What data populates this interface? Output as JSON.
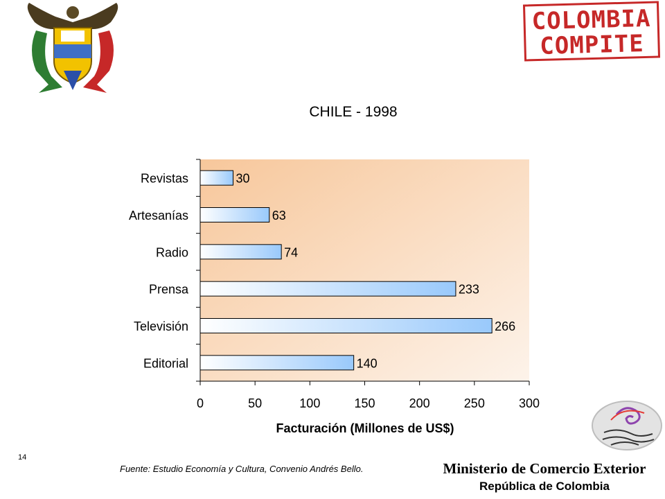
{
  "header": {
    "left_logo_icon": "colombia-coat-of-arms-icon",
    "right_logo_lines": [
      "COLOMBIA",
      "COMPITE"
    ]
  },
  "chart_data": {
    "type": "bar",
    "orientation": "horizontal",
    "title": "CHILE - 1998",
    "categories": [
      "Revistas",
      "Artesanías",
      "Radio",
      "Prensa",
      "Televisión",
      "Editorial"
    ],
    "values": [
      30,
      63,
      74,
      233,
      266,
      140
    ],
    "data_labels": [
      "30",
      "63",
      "74",
      "233",
      "266",
      "140"
    ],
    "xlabel": "Facturación (Millones de US$)",
    "ylabel": "",
    "xlim": [
      0,
      300
    ],
    "xticks": [
      "0",
      "50",
      "100",
      "150",
      "200",
      "250",
      "300"
    ],
    "grid": false,
    "legend": "none",
    "colors": {
      "bar_start": "#ffffff",
      "bar_end": "#99c9fb",
      "plot_bg_start": "#f7c79b",
      "plot_bg_end": "#fdf3ea"
    }
  },
  "footer": {
    "slide_number": "14",
    "source": "Fuente: Estudio Economía y Cultura, Convenio Andrés Bello.",
    "ministry": "Ministerio de Comercio Exterior",
    "republic": "República de Colombia",
    "logo_icon": "hands-logo-icon"
  }
}
